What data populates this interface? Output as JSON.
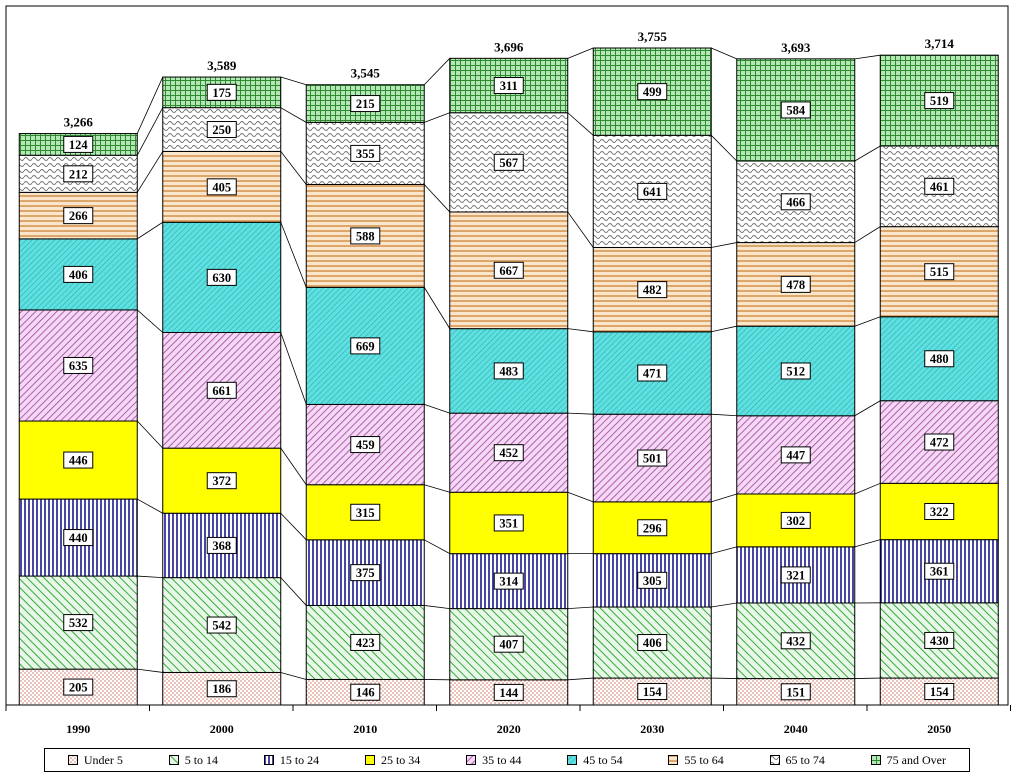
{
  "chart_data": {
    "type": "bar",
    "stacked": true,
    "categories": [
      "1990",
      "2000",
      "2010",
      "2020",
      "2030",
      "2040",
      "2050"
    ],
    "totals": [
      "3,266",
      "3,589",
      "3,545",
      "3,696",
      "3,755",
      "3,693",
      "3,714"
    ],
    "series": [
      {
        "name": "Under 5",
        "values": [
          205,
          186,
          146,
          144,
          154,
          151,
          154
        ],
        "color": "#ffd9c8",
        "pattern": "dots"
      },
      {
        "name": "5 to 14",
        "values": [
          532,
          542,
          423,
          407,
          406,
          432,
          430
        ],
        "color": "#c6efc6",
        "pattern": "diag-right"
      },
      {
        "name": "15 to 24",
        "values": [
          440,
          368,
          375,
          314,
          305,
          321,
          361
        ],
        "color": "#2020a0",
        "pattern": "vertical"
      },
      {
        "name": "25 to 34",
        "values": [
          446,
          372,
          315,
          351,
          296,
          302,
          322
        ],
        "color": "#ffff00",
        "pattern": "solid"
      },
      {
        "name": "35 to 44",
        "values": [
          635,
          661,
          459,
          452,
          501,
          447,
          472
        ],
        "color": "#e6a8e6",
        "pattern": "diag-left"
      },
      {
        "name": "45 to 54",
        "values": [
          406,
          630,
          669,
          483,
          471,
          512,
          480
        ],
        "color": "#66e6e6",
        "pattern": "diag-fine"
      },
      {
        "name": "55 to 64",
        "values": [
          266,
          405,
          588,
          667,
          482,
          478,
          515
        ],
        "color": "#f2c48f",
        "pattern": "horizontal"
      },
      {
        "name": "65 to 74",
        "values": [
          212,
          250,
          355,
          567,
          641,
          466,
          461
        ],
        "color": "#999999",
        "pattern": "wave"
      },
      {
        "name": "75 and Over",
        "values": [
          124,
          175,
          215,
          311,
          499,
          584,
          519
        ],
        "color": "#3f9e3f",
        "pattern": "grid"
      }
    ],
    "xlabel": "",
    "ylabel": "",
    "legend_position": "bottom",
    "grid": false
  }
}
